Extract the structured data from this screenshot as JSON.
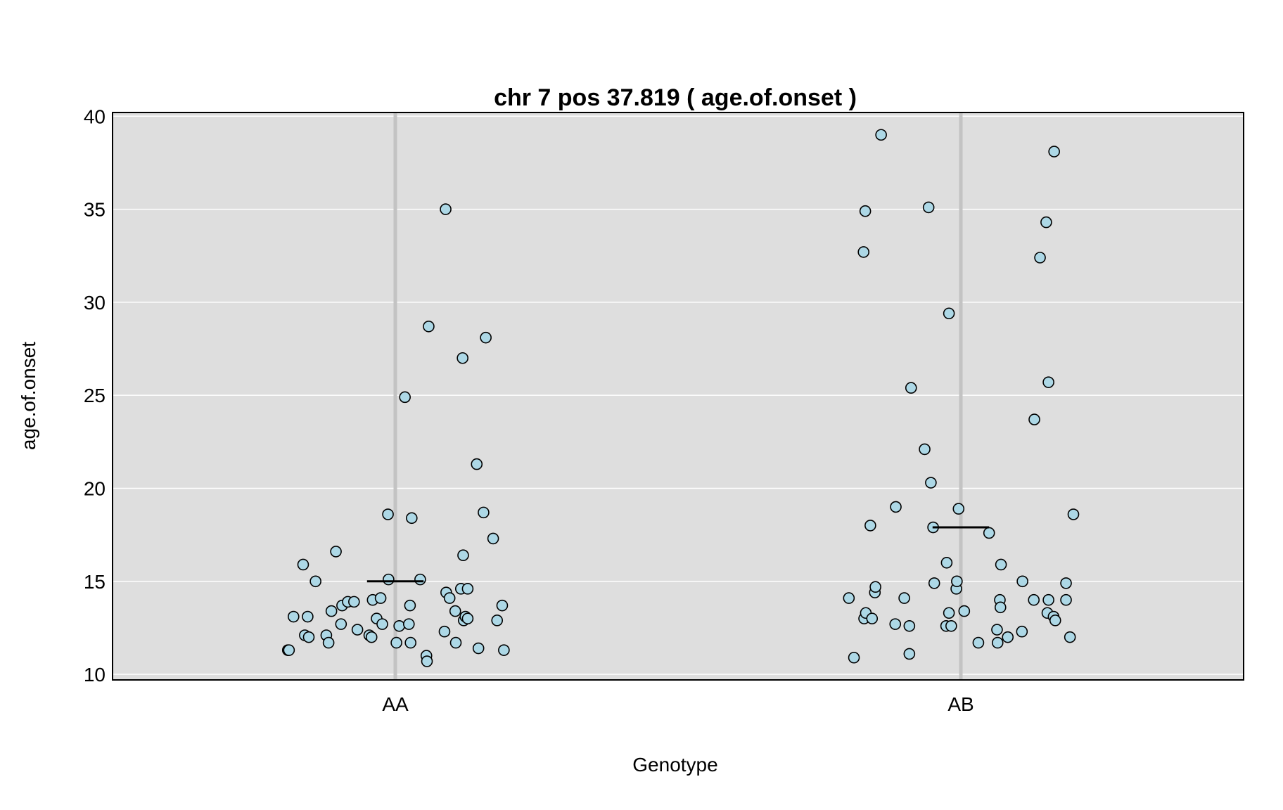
{
  "chart_data": {
    "type": "scatter",
    "title": "chr 7 pos 37.819 ( age.of.onset )",
    "xlabel": "Genotype",
    "ylabel": "age.of.onset",
    "categories": [
      "AA",
      "AB"
    ],
    "ylim": [
      9.7,
      40.2
    ],
    "yticks": [
      "10",
      "15",
      "20",
      "25",
      "30",
      "35",
      "40"
    ],
    "grid": true,
    "colors": {
      "panel": "#dedede",
      "gridline": "#ffffff",
      "category_line": "#c3c3c3",
      "point_fill": "#add8e6",
      "point_stroke": "#000000",
      "mean_line": "#000000"
    },
    "means": [
      15.0,
      17.9
    ],
    "series": [
      {
        "category": "AA",
        "points": [
          {
            "x": -0.19,
            "y": 11.3
          },
          {
            "x": -0.188,
            "y": 11.3
          },
          {
            "x": -0.18,
            "y": 13.1
          },
          {
            "x": -0.163,
            "y": 15.9
          },
          {
            "x": -0.16,
            "y": 12.1
          },
          {
            "x": -0.155,
            "y": 13.1
          },
          {
            "x": -0.153,
            "y": 12.0
          },
          {
            "x": -0.141,
            "y": 15.0
          },
          {
            "x": -0.122,
            "y": 12.1
          },
          {
            "x": -0.118,
            "y": 11.7
          },
          {
            "x": -0.113,
            "y": 13.4
          },
          {
            "x": -0.105,
            "y": 16.6
          },
          {
            "x": -0.096,
            "y": 12.7
          },
          {
            "x": -0.094,
            "y": 13.7
          },
          {
            "x": -0.084,
            "y": 13.9
          },
          {
            "x": -0.073,
            "y": 13.9
          },
          {
            "x": -0.067,
            "y": 12.4
          },
          {
            "x": -0.046,
            "y": 12.1
          },
          {
            "x": -0.042,
            "y": 12.0
          },
          {
            "x": -0.04,
            "y": 14.0
          },
          {
            "x": -0.033,
            "y": 13.0
          },
          {
            "x": -0.026,
            "y": 14.1
          },
          {
            "x": -0.023,
            "y": 12.7
          },
          {
            "x": -0.013,
            "y": 18.6
          },
          {
            "x": -0.012,
            "y": 15.1
          },
          {
            "x": 0.002,
            "y": 11.7
          },
          {
            "x": 0.007,
            "y": 12.6
          },
          {
            "x": 0.017,
            "y": 24.9
          },
          {
            "x": 0.024,
            "y": 12.7
          },
          {
            "x": 0.026,
            "y": 13.7
          },
          {
            "x": 0.027,
            "y": 11.7
          },
          {
            "x": 0.029,
            "y": 18.4
          },
          {
            "x": 0.044,
            "y": 15.1
          },
          {
            "x": 0.055,
            "y": 11.0
          },
          {
            "x": 0.056,
            "y": 10.7
          },
          {
            "x": 0.059,
            "y": 28.7
          },
          {
            "x": 0.087,
            "y": 12.3
          },
          {
            "x": 0.089,
            "y": 35.0
          },
          {
            "x": 0.09,
            "y": 14.4
          },
          {
            "x": 0.096,
            "y": 14.1
          },
          {
            "x": 0.106,
            "y": 13.4
          },
          {
            "x": 0.107,
            "y": 11.7
          },
          {
            "x": 0.116,
            "y": 14.6
          },
          {
            "x": 0.119,
            "y": 27.0
          },
          {
            "x": 0.12,
            "y": 16.4
          },
          {
            "x": 0.121,
            "y": 12.9
          },
          {
            "x": 0.124,
            "y": 13.1
          },
          {
            "x": 0.128,
            "y": 13.0
          },
          {
            "x": 0.128,
            "y": 14.6
          },
          {
            "x": 0.144,
            "y": 21.3
          },
          {
            "x": 0.147,
            "y": 11.4
          },
          {
            "x": 0.156,
            "y": 18.7
          },
          {
            "x": 0.16,
            "y": 28.1
          },
          {
            "x": 0.173,
            "y": 17.3
          },
          {
            "x": 0.18,
            "y": 12.9
          },
          {
            "x": 0.189,
            "y": 13.7
          },
          {
            "x": 0.192,
            "y": 11.3
          }
        ]
      },
      {
        "category": "AB",
        "points": [
          {
            "x": -0.198,
            "y": 14.1
          },
          {
            "x": -0.189,
            "y": 10.9
          },
          {
            "x": -0.172,
            "y": 32.7
          },
          {
            "x": -0.171,
            "y": 13.0
          },
          {
            "x": -0.169,
            "y": 34.9
          },
          {
            "x": -0.168,
            "y": 13.3
          },
          {
            "x": -0.16,
            "y": 18.0
          },
          {
            "x": -0.157,
            "y": 13.0
          },
          {
            "x": -0.152,
            "y": 14.4
          },
          {
            "x": -0.151,
            "y": 14.7
          },
          {
            "x": -0.141,
            "y": 39.0
          },
          {
            "x": -0.116,
            "y": 12.7
          },
          {
            "x": -0.115,
            "y": 19.0
          },
          {
            "x": -0.1,
            "y": 14.1
          },
          {
            "x": -0.091,
            "y": 11.1
          },
          {
            "x": -0.091,
            "y": 12.6
          },
          {
            "x": -0.088,
            "y": 25.4
          },
          {
            "x": -0.064,
            "y": 22.1
          },
          {
            "x": -0.057,
            "y": 35.1
          },
          {
            "x": -0.053,
            "y": 20.3
          },
          {
            "x": -0.049,
            "y": 17.9
          },
          {
            "x": -0.047,
            "y": 14.9
          },
          {
            "x": -0.026,
            "y": 12.6
          },
          {
            "x": -0.025,
            "y": 16.0
          },
          {
            "x": -0.021,
            "y": 29.4
          },
          {
            "x": -0.021,
            "y": 13.3
          },
          {
            "x": -0.017,
            "y": 12.6
          },
          {
            "x": -0.008,
            "y": 14.6
          },
          {
            "x": -0.007,
            "y": 15.0
          },
          {
            "x": -0.004,
            "y": 18.9
          },
          {
            "x": 0.006,
            "y": 13.4
          },
          {
            "x": 0.031,
            "y": 11.7
          },
          {
            "x": 0.05,
            "y": 17.6
          },
          {
            "x": 0.064,
            "y": 12.4
          },
          {
            "x": 0.065,
            "y": 11.7
          },
          {
            "x": 0.069,
            "y": 14.0
          },
          {
            "x": 0.07,
            "y": 13.6
          },
          {
            "x": 0.071,
            "y": 15.9
          },
          {
            "x": 0.083,
            "y": 12.0
          },
          {
            "x": 0.108,
            "y": 12.3
          },
          {
            "x": 0.109,
            "y": 15.0
          },
          {
            "x": 0.129,
            "y": 14.0
          },
          {
            "x": 0.13,
            "y": 23.7
          },
          {
            "x": 0.14,
            "y": 32.4
          },
          {
            "x": 0.151,
            "y": 34.3
          },
          {
            "x": 0.153,
            "y": 13.3
          },
          {
            "x": 0.155,
            "y": 14.0
          },
          {
            "x": 0.155,
            "y": 25.7
          },
          {
            "x": 0.164,
            "y": 13.1
          },
          {
            "x": 0.165,
            "y": 38.1
          },
          {
            "x": 0.167,
            "y": 12.9
          },
          {
            "x": 0.186,
            "y": 14.9
          },
          {
            "x": 0.186,
            "y": 14.0
          },
          {
            "x": 0.193,
            "y": 12.0
          },
          {
            "x": 0.199,
            "y": 18.6
          }
        ]
      }
    ]
  }
}
